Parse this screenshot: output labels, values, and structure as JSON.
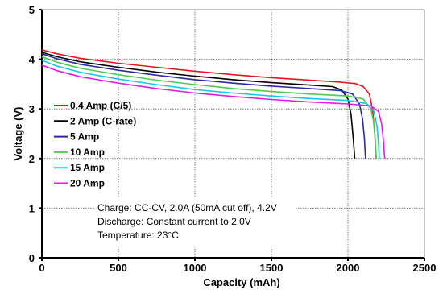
{
  "chart_data": {
    "type": "line",
    "xlabel": "Capacity (mAh)",
    "ylabel": "Voltage (V)",
    "xlim": [
      0,
      2500
    ],
    "ylim": [
      0,
      5
    ],
    "x_ticks": [
      0,
      500,
      1000,
      1500,
      2000,
      2500
    ],
    "y_ticks": [
      0,
      1,
      2,
      3,
      4,
      5
    ],
    "x_grid": "dotted vertical",
    "y_grid": "dotted horizontal",
    "legend_position": "left-center",
    "series": [
      {
        "name": "0.4 Amp (C/5)",
        "color": "#e8141e",
        "points": [
          [
            0,
            4.19
          ],
          [
            100,
            4.11
          ],
          [
            250,
            4.02
          ],
          [
            500,
            3.92
          ],
          [
            750,
            3.84
          ],
          [
            1000,
            3.76
          ],
          [
            1250,
            3.69
          ],
          [
            1500,
            3.63
          ],
          [
            1750,
            3.58
          ],
          [
            1950,
            3.54
          ],
          [
            2050,
            3.51
          ],
          [
            2100,
            3.45
          ],
          [
            2140,
            3.3
          ],
          [
            2160,
            3.0
          ],
          [
            2175,
            2.5
          ],
          [
            2185,
            2.0
          ]
        ]
      },
      {
        "name": "2 Amp (C-rate)",
        "color": "#000000",
        "points": [
          [
            0,
            4.14
          ],
          [
            100,
            4.05
          ],
          [
            250,
            3.95
          ],
          [
            500,
            3.84
          ],
          [
            750,
            3.74
          ],
          [
            1000,
            3.66
          ],
          [
            1250,
            3.59
          ],
          [
            1500,
            3.53
          ],
          [
            1750,
            3.48
          ],
          [
            1900,
            3.45
          ],
          [
            1960,
            3.38
          ],
          [
            2000,
            3.2
          ],
          [
            2020,
            2.9
          ],
          [
            2035,
            2.4
          ],
          [
            2045,
            2.0
          ]
        ]
      },
      {
        "name": "5 Amp",
        "color": "#2a2aa6",
        "points": [
          [
            0,
            4.11
          ],
          [
            100,
            4.01
          ],
          [
            250,
            3.9
          ],
          [
            500,
            3.78
          ],
          [
            750,
            3.68
          ],
          [
            1000,
            3.59
          ],
          [
            1250,
            3.52
          ],
          [
            1500,
            3.46
          ],
          [
            1750,
            3.41
          ],
          [
            1950,
            3.37
          ],
          [
            2030,
            3.3
          ],
          [
            2075,
            3.1
          ],
          [
            2095,
            2.8
          ],
          [
            2108,
            2.4
          ],
          [
            2115,
            2.0
          ]
        ]
      },
      {
        "name": "10 Amp",
        "color": "#4ecb4e",
        "points": [
          [
            0,
            4.05
          ],
          [
            100,
            3.94
          ],
          [
            250,
            3.82
          ],
          [
            500,
            3.69
          ],
          [
            750,
            3.58
          ],
          [
            1000,
            3.49
          ],
          [
            1250,
            3.41
          ],
          [
            1500,
            3.35
          ],
          [
            1750,
            3.3
          ],
          [
            2000,
            3.26
          ],
          [
            2100,
            3.2
          ],
          [
            2150,
            3.0
          ],
          [
            2170,
            2.7
          ],
          [
            2180,
            2.3
          ],
          [
            2185,
            2.0
          ]
        ]
      },
      {
        "name": "15 Amp",
        "color": "#14c8e6",
        "points": [
          [
            0,
            3.98
          ],
          [
            100,
            3.86
          ],
          [
            250,
            3.74
          ],
          [
            500,
            3.6
          ],
          [
            750,
            3.49
          ],
          [
            1000,
            3.39
          ],
          [
            1250,
            3.32
          ],
          [
            1500,
            3.26
          ],
          [
            1750,
            3.21
          ],
          [
            2000,
            3.17
          ],
          [
            2120,
            3.11
          ],
          [
            2170,
            2.95
          ],
          [
            2190,
            2.65
          ],
          [
            2200,
            2.3
          ],
          [
            2205,
            2.0
          ]
        ]
      },
      {
        "name": "20 Amp",
        "color": "#e619e6",
        "points": [
          [
            0,
            3.88
          ],
          [
            100,
            3.77
          ],
          [
            250,
            3.65
          ],
          [
            500,
            3.52
          ],
          [
            750,
            3.41
          ],
          [
            1000,
            3.32
          ],
          [
            1250,
            3.25
          ],
          [
            1500,
            3.19
          ],
          [
            1750,
            3.14
          ],
          [
            2000,
            3.1
          ],
          [
            2150,
            3.06
          ],
          [
            2200,
            2.95
          ],
          [
            2220,
            2.7
          ],
          [
            2232,
            2.35
          ],
          [
            2240,
            2.0
          ]
        ]
      }
    ],
    "annotations": [
      "Charge: CC-CV, 2.0A (50mA cut off), 4.2V",
      "Discharge: Constant current to 2.0V",
      "Temperature: 23°C"
    ]
  }
}
